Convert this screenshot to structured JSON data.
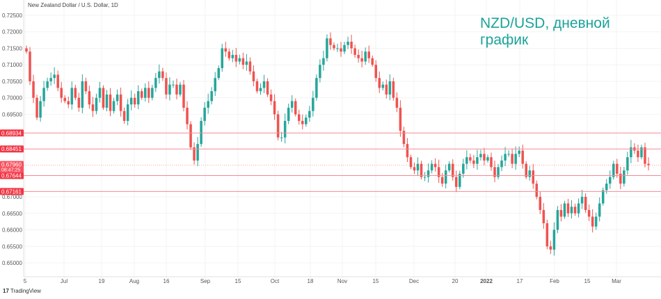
{
  "chart_data": {
    "type": "candlestick",
    "symbol_label": "New Zealand Dollar / U.S. Dollar, 1D",
    "title": "NZD/USD, дневной график",
    "ylim": [
      0.648,
      0.727
    ],
    "y_ticks": [
      "0.72500",
      "0.72000",
      "0.71500",
      "0.71000",
      "0.70500",
      "0.70000",
      "0.69500",
      "0.67000",
      "0.66500",
      "0.66000",
      "0.65500",
      "0.65000"
    ],
    "x_ticks": [
      "5",
      "Jul",
      "19",
      "Aug",
      "16",
      "Sep",
      "15",
      "Oct",
      "18",
      "Nov",
      "15",
      "Dec",
      "20",
      "2022",
      "17",
      "Feb",
      "15",
      "Mar"
    ],
    "open_first": 0.715,
    "closes": [
      0.714,
      0.705,
      0.7,
      0.694,
      0.699,
      0.703,
      0.705,
      0.706,
      0.707,
      0.703,
      0.7,
      0.699,
      0.698,
      0.703,
      0.7,
      0.697,
      0.705,
      0.702,
      0.698,
      0.696,
      0.7,
      0.703,
      0.697,
      0.701,
      0.696,
      0.699,
      0.701,
      0.696,
      0.693,
      0.698,
      0.7,
      0.698,
      0.702,
      0.7,
      0.703,
      0.7,
      0.703,
      0.706,
      0.708,
      0.706,
      0.701,
      0.704,
      0.704,
      0.701,
      0.704,
      0.697,
      0.692,
      0.685,
      0.681,
      0.686,
      0.693,
      0.697,
      0.699,
      0.702,
      0.706,
      0.709,
      0.715,
      0.714,
      0.712,
      0.713,
      0.711,
      0.712,
      0.71,
      0.711,
      0.708,
      0.705,
      0.702,
      0.703,
      0.705,
      0.701,
      0.699,
      0.695,
      0.688,
      0.688,
      0.693,
      0.697,
      0.699,
      0.695,
      0.693,
      0.692,
      0.694,
      0.696,
      0.7,
      0.706,
      0.71,
      0.712,
      0.718,
      0.716,
      0.715,
      0.715,
      0.714,
      0.716,
      0.717,
      0.715,
      0.713,
      0.712,
      0.711,
      0.714,
      0.712,
      0.71,
      0.706,
      0.703,
      0.704,
      0.701,
      0.705,
      0.7,
      0.697,
      0.69,
      0.686,
      0.682,
      0.679,
      0.678,
      0.68,
      0.676,
      0.676,
      0.678,
      0.68,
      0.679,
      0.676,
      0.674,
      0.678,
      0.68,
      0.676,
      0.673,
      0.677,
      0.68,
      0.682,
      0.681,
      0.68,
      0.682,
      0.683,
      0.681,
      0.682,
      0.679,
      0.676,
      0.679,
      0.681,
      0.683,
      0.683,
      0.68,
      0.683,
      0.684,
      0.68,
      0.676,
      0.678,
      0.674,
      0.67,
      0.666,
      0.662,
      0.655,
      0.654,
      0.66,
      0.666,
      0.664,
      0.668,
      0.665,
      0.667,
      0.665,
      0.668,
      0.67,
      0.666,
      0.664,
      0.661,
      0.664,
      0.668,
      0.672,
      0.674,
      0.676,
      0.68,
      0.677,
      0.674,
      0.678,
      0.682,
      0.685,
      0.684,
      0.682,
      0.685,
      0.68,
      0.6796
    ],
    "levels": [
      {
        "label": "0.68934",
        "value": 0.68934
      },
      {
        "label": "0.68451",
        "value": 0.68451
      },
      {
        "label": "0.67644",
        "value": 0.67644
      },
      {
        "label": "0.67161",
        "value": 0.67161
      }
    ],
    "current_price": {
      "label": "0.67960",
      "value": 0.6796,
      "countdown": "08:47:25"
    },
    "colors": {
      "up": "#26a69a",
      "down": "#ef5350",
      "level": "#f28b92"
    }
  },
  "footer": {
    "brand": "TradingView"
  }
}
